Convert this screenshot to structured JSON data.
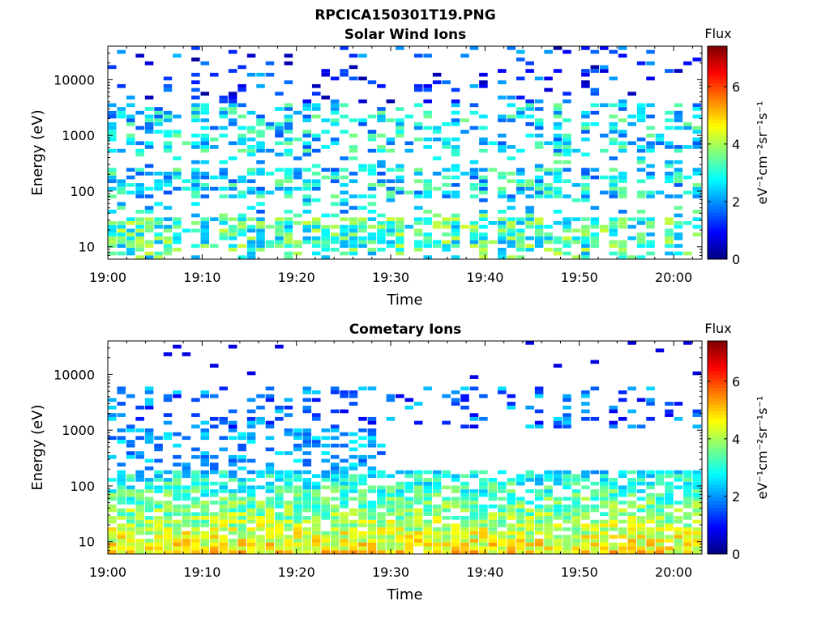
{
  "figure_title": "RPCICA150301T19.PNG",
  "chart_data": [
    {
      "type": "heatmap",
      "title": "Solar Wind Ions",
      "xlabel": "Time",
      "ylabel": "Energy (eV)",
      "x_ticks": [
        "19:00",
        "19:10",
        "19:20",
        "19:30",
        "19:40",
        "19:50",
        "20:00"
      ],
      "x_range_minutes": [
        0,
        63
      ],
      "y_scale": "log",
      "y_range": [
        6,
        40000
      ],
      "y_ticks": [
        10,
        100,
        1000,
        10000
      ],
      "y_tick_labels": [
        "10",
        "100",
        "1000",
        "10000"
      ],
      "colorbar": {
        "label": "Flux",
        "unit_label": "eV⁻¹cm⁻²sr⁻¹s⁻¹",
        "range": [
          0,
          7.4
        ],
        "ticks": [
          "0",
          "2",
          "4",
          "6"
        ],
        "colormap": "jet"
      },
      "profile": {
        "intermittent_bands_eV": [
          [
            10,
            35
          ],
          [
            70,
            250
          ],
          [
            500,
            4000
          ],
          [
            4000,
            40000
          ]
        ],
        "flux_range": [
          0.5,
          4.5
        ]
      }
    },
    {
      "type": "heatmap",
      "title": "Cometary Ions",
      "xlabel": "Time",
      "ylabel": "Energy (eV)",
      "x_ticks": [
        "19:00",
        "19:10",
        "19:20",
        "19:30",
        "19:40",
        "19:50",
        "20:00"
      ],
      "x_range_minutes": [
        0,
        63
      ],
      "y_scale": "log",
      "y_range": [
        6,
        40000
      ],
      "y_ticks": [
        10,
        100,
        1000,
        10000
      ],
      "y_tick_labels": [
        "10",
        "100",
        "1000",
        "10000"
      ],
      "colorbar": {
        "label": "Flux",
        "unit_label": "eV⁻¹cm⁻²sr⁻¹s⁻¹",
        "range": [
          0,
          7.4
        ],
        "ticks": [
          "0",
          "2",
          "4",
          "6"
        ],
        "colormap": "jet"
      },
      "profile": {
        "dense_band_eV": [
          6,
          200
        ],
        "intermittent_band_eV": [
          1000,
          6000
        ],
        "flux_range": [
          1.0,
          6.0
        ]
      }
    }
  ]
}
